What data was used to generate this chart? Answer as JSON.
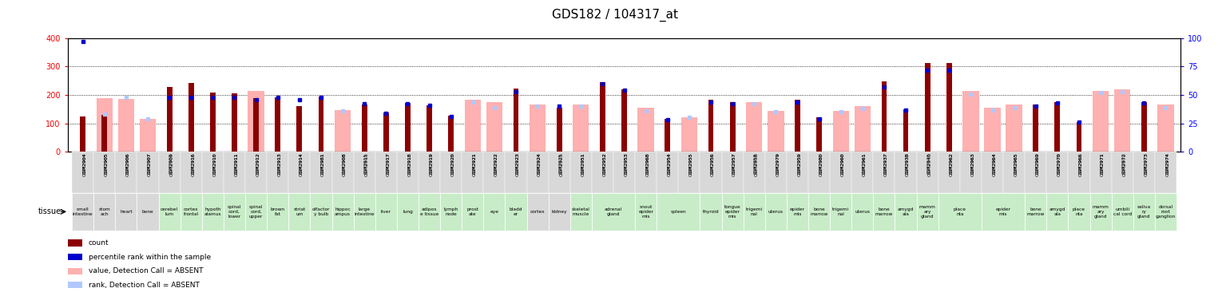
{
  "title": "GDS182 / 104317_at",
  "left_ylim": [
    0,
    400
  ],
  "right_ylim": [
    0,
    100
  ],
  "left_yticks": [
    0,
    100,
    200,
    300,
    400
  ],
  "right_yticks": [
    0,
    25,
    50,
    75,
    100
  ],
  "gridlines": [
    100,
    200,
    300
  ],
  "samples": [
    {
      "id": "GSM2904",
      "tissue": "small\nintestine",
      "tg": 0,
      "count": 124,
      "absent_val": null,
      "rank": 97,
      "rank_absent": null
    },
    {
      "id": "GSM2905",
      "tissue": "stom\nach",
      "tg": 0,
      "count": 131,
      "absent_val": 190,
      "rank": null,
      "rank_absent": 33
    },
    {
      "id": "GSM2906",
      "tissue": "heart",
      "tg": 1,
      "count": null,
      "absent_val": 185,
      "rank": null,
      "rank_absent": 48
    },
    {
      "id": "GSM2907",
      "tissue": "bone",
      "tg": 1,
      "count": null,
      "absent_val": 115,
      "rank": null,
      "rank_absent": 29
    },
    {
      "id": "GSM2909",
      "tissue": "cerebel\nlum",
      "tg": 2,
      "count": 228,
      "absent_val": null,
      "rank": 48,
      "rank_absent": null
    },
    {
      "id": "GSM2916",
      "tissue": "cortex\nfrontal",
      "tg": 2,
      "count": 243,
      "absent_val": null,
      "rank": 48,
      "rank_absent": null
    },
    {
      "id": "GSM2910",
      "tissue": "hypoth\nalamus",
      "tg": 2,
      "count": 208,
      "absent_val": null,
      "rank": 48,
      "rank_absent": null
    },
    {
      "id": "GSM2911",
      "tissue": "spinal\ncord,\nlower",
      "tg": 2,
      "count": 205,
      "absent_val": null,
      "rank": 48,
      "rank_absent": null
    },
    {
      "id": "GSM2912",
      "tissue": "spinal\ncord,\nupper",
      "tg": 2,
      "count": 190,
      "absent_val": 215,
      "rank": 46,
      "rank_absent": null
    },
    {
      "id": "GSM2913",
      "tissue": "brown\nfat",
      "tg": 2,
      "count": 192,
      "absent_val": null,
      "rank": 48,
      "rank_absent": null
    },
    {
      "id": "GSM2914",
      "tissue": "striat\num",
      "tg": 2,
      "count": 162,
      "absent_val": null,
      "rank": 46,
      "rank_absent": null
    },
    {
      "id": "GSM2981",
      "tissue": "olfactor\ny bulb",
      "tg": 3,
      "count": 195,
      "absent_val": null,
      "rank": 48,
      "rank_absent": null
    },
    {
      "id": "GSM2908",
      "tissue": "hippoc\nampus",
      "tg": 3,
      "count": null,
      "absent_val": 148,
      "rank": null,
      "rank_absent": 36
    },
    {
      "id": "GSM2915",
      "tissue": "large\nintestine",
      "tg": 3,
      "count": 167,
      "absent_val": null,
      "rank": 42,
      "rank_absent": null
    },
    {
      "id": "GSM2917",
      "tissue": "liver",
      "tg": 4,
      "count": 137,
      "absent_val": null,
      "rank": 34,
      "rank_absent": null
    },
    {
      "id": "GSM2918",
      "tissue": "lung",
      "tg": 4,
      "count": 172,
      "absent_val": null,
      "rank": 42,
      "rank_absent": null
    },
    {
      "id": "GSM2919",
      "tissue": "adipos\ne tissue",
      "tg": 4,
      "count": 163,
      "absent_val": null,
      "rank": 41,
      "rank_absent": null
    },
    {
      "id": "GSM2920",
      "tissue": "lymph\nnode",
      "tg": 4,
      "count": 127,
      "absent_val": null,
      "rank": 31,
      "rank_absent": null
    },
    {
      "id": "GSM2921",
      "tissue": "prost\nate",
      "tg": 4,
      "count": null,
      "absent_val": 183,
      "rank": null,
      "rank_absent": 44
    },
    {
      "id": "GSM2922",
      "tissue": "eye",
      "tg": 4,
      "count": null,
      "absent_val": 175,
      "rank": null,
      "rank_absent": 39
    },
    {
      "id": "GSM2923",
      "tissue": "bladd\ner",
      "tg": 4,
      "count": 222,
      "absent_val": null,
      "rank": 53,
      "rank_absent": null
    },
    {
      "id": "GSM2924",
      "tissue": "cortex",
      "tg": 5,
      "count": null,
      "absent_val": 167,
      "rank": null,
      "rank_absent": 40
    },
    {
      "id": "GSM2925",
      "tissue": "kidney",
      "tg": 5,
      "count": 154,
      "absent_val": null,
      "rank": 40,
      "rank_absent": null
    },
    {
      "id": "GSM2951",
      "tissue": "skeletal\nmuscle",
      "tg": 6,
      "count": null,
      "absent_val": 167,
      "rank": null,
      "rank_absent": 40
    },
    {
      "id": "GSM2952",
      "tissue": "adrenal\ngland",
      "tg": 6,
      "count": 245,
      "absent_val": null,
      "rank": 60,
      "rank_absent": null
    },
    {
      "id": "GSM2953",
      "tissue": "adrenal\ngland",
      "tg": 6,
      "count": 220,
      "absent_val": null,
      "rank": 54,
      "rank_absent": null
    },
    {
      "id": "GSM2968",
      "tissue": "snout\nepider\nmis",
      "tg": 6,
      "count": null,
      "absent_val": 155,
      "rank": null,
      "rank_absent": 36
    },
    {
      "id": "GSM2954",
      "tissue": "spleen",
      "tg": 6,
      "count": 115,
      "absent_val": null,
      "rank": 28,
      "rank_absent": null
    },
    {
      "id": "GSM2955",
      "tissue": "spleen",
      "tg": 6,
      "count": null,
      "absent_val": 120,
      "rank": null,
      "rank_absent": 30
    },
    {
      "id": "GSM2956",
      "tissue": "thyroid",
      "tg": 6,
      "count": 182,
      "absent_val": null,
      "rank": 44,
      "rank_absent": null
    },
    {
      "id": "GSM2957",
      "tissue": "tongue\nepider\nmis",
      "tg": 6,
      "count": 175,
      "absent_val": null,
      "rank": 42,
      "rank_absent": null
    },
    {
      "id": "GSM2958",
      "tissue": "trigemi\nnal",
      "tg": 6,
      "count": null,
      "absent_val": 175,
      "rank": null,
      "rank_absent": 42
    },
    {
      "id": "GSM2979",
      "tissue": "uterus",
      "tg": 6,
      "count": null,
      "absent_val": 145,
      "rank": null,
      "rank_absent": 35
    },
    {
      "id": "GSM2959",
      "tissue": "epider\nmis",
      "tg": 6,
      "count": 182,
      "absent_val": null,
      "rank": 44,
      "rank_absent": null
    },
    {
      "id": "GSM2980",
      "tissue": "bone\nmarrow",
      "tg": 6,
      "count": 120,
      "absent_val": null,
      "rank": 29,
      "rank_absent": null
    },
    {
      "id": "GSM2960",
      "tissue": "trigemi\nnal",
      "tg": 6,
      "count": null,
      "absent_val": 145,
      "rank": null,
      "rank_absent": 35
    },
    {
      "id": "GSM2961",
      "tissue": "uterus",
      "tg": 6,
      "count": null,
      "absent_val": 160,
      "rank": null,
      "rank_absent": 38
    },
    {
      "id": "GSM2937",
      "tissue": "bone\nmarrow",
      "tg": 6,
      "count": 248,
      "absent_val": null,
      "rank": 57,
      "rank_absent": null
    },
    {
      "id": "GSM2938",
      "tissue": "amygd\nala",
      "tg": 6,
      "count": 150,
      "absent_val": null,
      "rank": 37,
      "rank_absent": null
    },
    {
      "id": "GSM2940",
      "tissue": "mamm\nary\ngland",
      "tg": 6,
      "count": 313,
      "absent_val": null,
      "rank": 72,
      "rank_absent": null
    },
    {
      "id": "GSM2962",
      "tissue": "place\nnta",
      "tg": 6,
      "count": 313,
      "absent_val": null,
      "rank": 72,
      "rank_absent": null
    },
    {
      "id": "GSM2963",
      "tissue": "place\nnta",
      "tg": 6,
      "count": null,
      "absent_val": 213,
      "rank": null,
      "rank_absent": 51
    },
    {
      "id": "GSM2964",
      "tissue": "epider\nmis",
      "tg": 6,
      "count": null,
      "absent_val": 155,
      "rank": null,
      "rank_absent": 37
    },
    {
      "id": "GSM2965",
      "tissue": "epider\nmis",
      "tg": 6,
      "count": null,
      "absent_val": 165,
      "rank": null,
      "rank_absent": 39
    },
    {
      "id": "GSM2969",
      "tissue": "bone\nmarrow",
      "tg": 6,
      "count": 165,
      "absent_val": null,
      "rank": 40,
      "rank_absent": null
    },
    {
      "id": "GSM2970",
      "tissue": "amygd\nala",
      "tg": 6,
      "count": 175,
      "absent_val": null,
      "rank": 43,
      "rank_absent": null
    },
    {
      "id": "GSM2966",
      "tissue": "place\nnta",
      "tg": 6,
      "count": 105,
      "absent_val": null,
      "rank": 26,
      "rank_absent": null
    },
    {
      "id": "GSM2971",
      "tissue": "mamm\nary\ngland",
      "tg": 6,
      "count": null,
      "absent_val": 215,
      "rank": null,
      "rank_absent": 52
    },
    {
      "id": "GSM2972",
      "tissue": "umbili\ncal cord",
      "tg": 6,
      "count": null,
      "absent_val": 220,
      "rank": null,
      "rank_absent": 53
    },
    {
      "id": "GSM2973",
      "tissue": "saliva\nry\ngland",
      "tg": 6,
      "count": 175,
      "absent_val": null,
      "rank": 43,
      "rank_absent": null
    },
    {
      "id": "GSM2974",
      "tissue": "dorsal\nroot\nganglion",
      "tg": 6,
      "count": null,
      "absent_val": 165,
      "rank": null,
      "rank_absent": 39
    }
  ],
  "tg_colors": {
    "0": "#d8d8d8",
    "1": "#d8d8d8",
    "2": "#c8ecc8",
    "3": "#c8ecc8",
    "4": "#c8ecc8",
    "5": "#d8d8d8",
    "6": "#c8ecc8"
  },
  "count_color": "#8b0000",
  "absent_val_color": "#ffb0b0",
  "rank_color": "#0000cd",
  "rank_absent_color": "#b0c8ff",
  "title_fontsize": 11
}
